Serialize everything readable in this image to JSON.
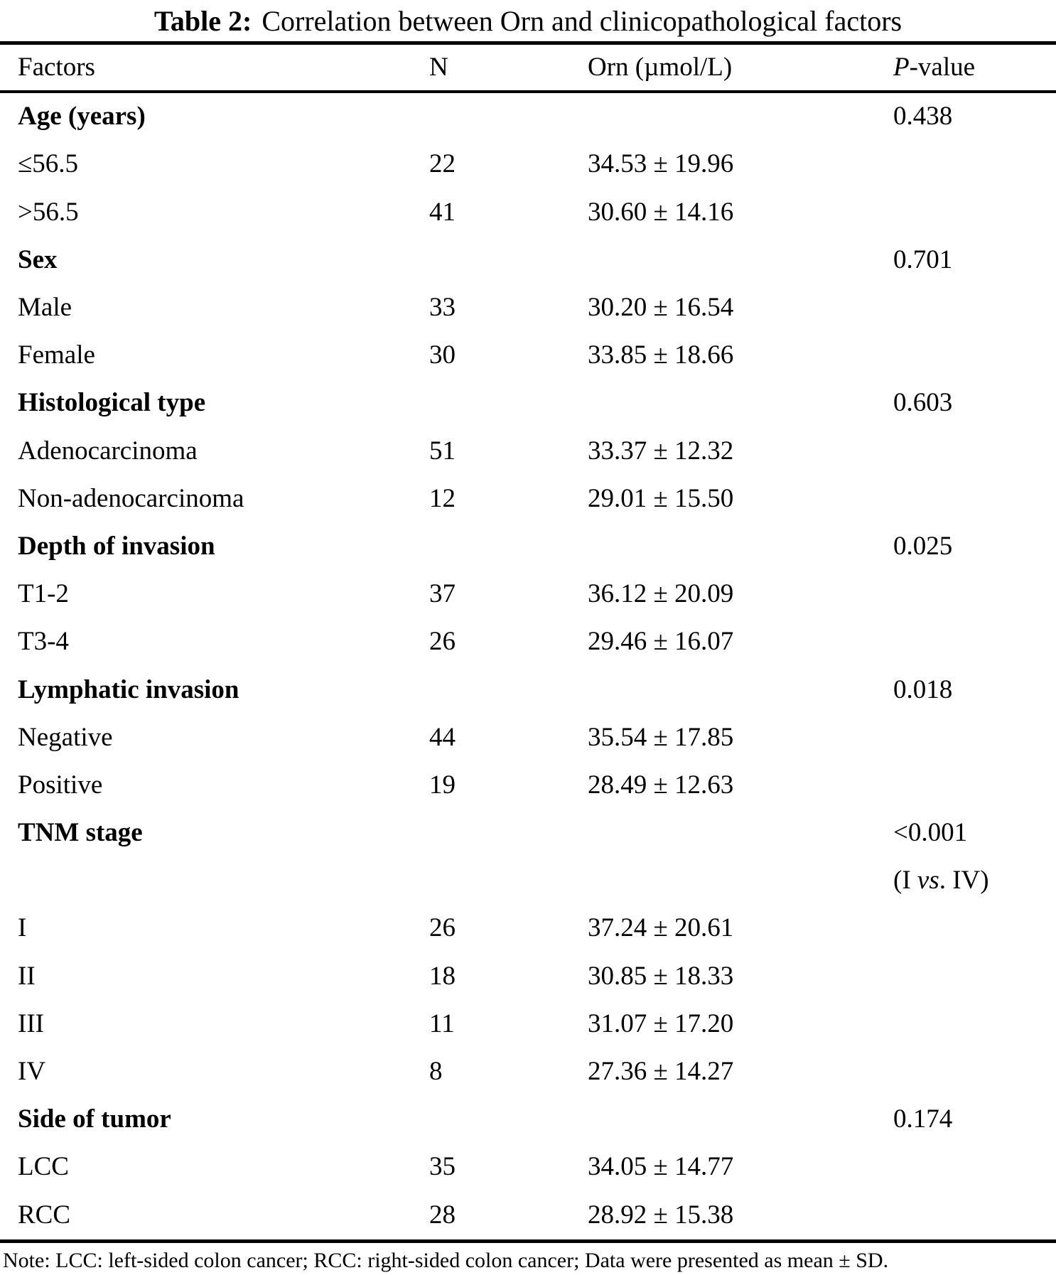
{
  "caption": {
    "label": "Table 2:",
    "text": "Correlation between Orn and clinicopathological factors"
  },
  "table": {
    "columns": [
      {
        "key": "factors",
        "label": "Factors"
      },
      {
        "key": "n",
        "label": "N"
      },
      {
        "key": "orn",
        "label": "Orn (µmol/L)"
      },
      {
        "key": "p",
        "label": [
          {
            "t": "P",
            "i": true
          },
          {
            "t": "-value"
          }
        ]
      }
    ],
    "rows": [
      {
        "factor": "Age (years)",
        "bold": true,
        "n": "",
        "orn": "",
        "p": "0.438"
      },
      {
        "factor": "≤56.5",
        "n": "22",
        "orn": "34.53 ± 19.96",
        "p": ""
      },
      {
        "factor": ">56.5",
        "n": "41",
        "orn": "30.60 ± 14.16",
        "p": ""
      },
      {
        "factor": "Sex",
        "bold": true,
        "n": "",
        "orn": "",
        "p": "0.701"
      },
      {
        "factor": "Male",
        "n": "33",
        "orn": "30.20 ± 16.54",
        "p": ""
      },
      {
        "factor": "Female",
        "n": "30",
        "orn": "33.85 ± 18.66",
        "p": ""
      },
      {
        "factor": "Histological type",
        "bold": true,
        "n": "",
        "orn": "",
        "p": "0.603"
      },
      {
        "factor": "Adenocarcinoma",
        "n": "51",
        "orn": "33.37 ± 12.32",
        "p": ""
      },
      {
        "factor": "Non-adenocarcinoma",
        "n": "12",
        "orn": "29.01 ± 15.50",
        "p": ""
      },
      {
        "factor": "Depth of invasion",
        "bold": true,
        "n": "",
        "orn": "",
        "p": "0.025"
      },
      {
        "factor": "T1-2",
        "n": "37",
        "orn": "36.12 ± 20.09",
        "p": ""
      },
      {
        "factor": "T3-4",
        "n": "26",
        "orn": "29.46 ± 16.07",
        "p": ""
      },
      {
        "factor": "Lymphatic invasion",
        "bold": true,
        "n": "",
        "orn": "",
        "p": "0.018"
      },
      {
        "factor": "Negative",
        "n": "44",
        "orn": "35.54 ± 17.85",
        "p": ""
      },
      {
        "factor": "Positive",
        "n": "19",
        "orn": "28.49 ± 12.63",
        "p": ""
      },
      {
        "factor": "TNM stage",
        "bold": true,
        "n": "",
        "orn": "",
        "p": "<0.001"
      },
      {
        "factor": "",
        "n": "",
        "orn": "",
        "p": [
          {
            "t": "(I "
          },
          {
            "t": "vs",
            "i": true
          },
          {
            "t": ". IV)"
          }
        ]
      },
      {
        "factor": "I",
        "n": "26",
        "orn": "37.24 ± 20.61",
        "p": ""
      },
      {
        "factor": "II",
        "n": "18",
        "orn": "30.85 ± 18.33",
        "p": ""
      },
      {
        "factor": "III",
        "n": "11",
        "orn": "31.07 ± 17.20",
        "p": ""
      },
      {
        "factor": "IV",
        "n": "8",
        "orn": "27.36 ± 14.27",
        "p": ""
      },
      {
        "factor": "Side of tumor",
        "bold": true,
        "n": "",
        "orn": "",
        "p": "0.174"
      },
      {
        "factor": "LCC",
        "n": "35",
        "orn": "34.05 ± 14.77",
        "p": ""
      },
      {
        "factor": "RCC",
        "n": "28",
        "orn": "28.92 ± 15.38",
        "p": ""
      }
    ]
  },
  "note": "Note: LCC: left-sided colon cancer; RCC: right-sided colon cancer; Data were presented as mean ± SD."
}
